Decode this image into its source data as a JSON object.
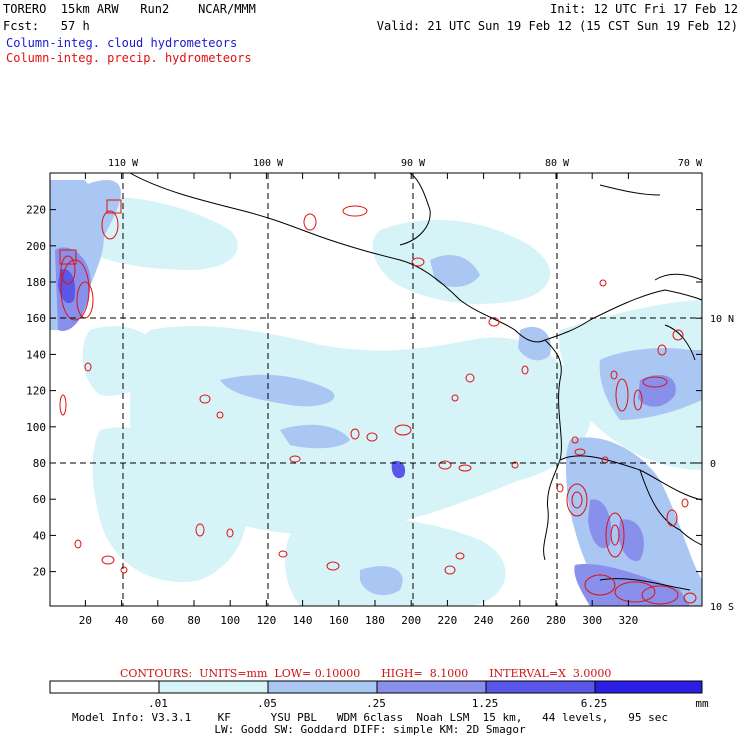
{
  "header": {
    "line1_left": "TORERO  15km ARW   Run2    NCAR/MMM",
    "line1_right": "Init: 12 UTC Fri 17 Feb 12",
    "line2_left": "Fcst:   57 h",
    "line2_right": "Valid: 21 UTC Sun 19 Feb 12 (15 CST Sun 19 Feb 12)",
    "legend_cloud": "Column-integ. cloud hydrometeors",
    "legend_precip": "Column-integ. precip. hydrometeors"
  },
  "map": {
    "lon_labels": [
      "110 W",
      "100 W",
      "90 W",
      "80 W",
      "70 W"
    ],
    "lat_labels": [
      "10 N",
      "0",
      "10 S"
    ],
    "x_ticks": [
      "20",
      "40",
      "60",
      "80",
      "100",
      "120",
      "140",
      "160",
      "180",
      "200",
      "220",
      "240",
      "260",
      "280",
      "300",
      "320"
    ],
    "y_ticks": [
      "220",
      "200",
      "180",
      "160",
      "140",
      "120",
      "100",
      "80",
      "60",
      "40",
      "20"
    ]
  },
  "contours": {
    "text": "CONTOURS:  UNITS=mm  LOW= 0.10000      HIGH=  8.1000      INTERVAL=X  3.0000"
  },
  "colorbar": {
    "levels": [
      ".01",
      ".05",
      ".25",
      "1.25",
      "6.25"
    ],
    "unit": "mm",
    "colors": [
      "#ffffff",
      "#d6f3f8",
      "#aac6f2",
      "#8890ec",
      "#5a56e8",
      "#2b1fe6"
    ]
  },
  "model_info": {
    "line1": "Model Info: V3.3.1    KF      YSU PBL   WDM 6class  Noah LSM  15 km,   44 levels,   95 sec",
    "line2": "LW: Godd SW: Goddard DIFF: simple KM: 2D Smagor"
  }
}
